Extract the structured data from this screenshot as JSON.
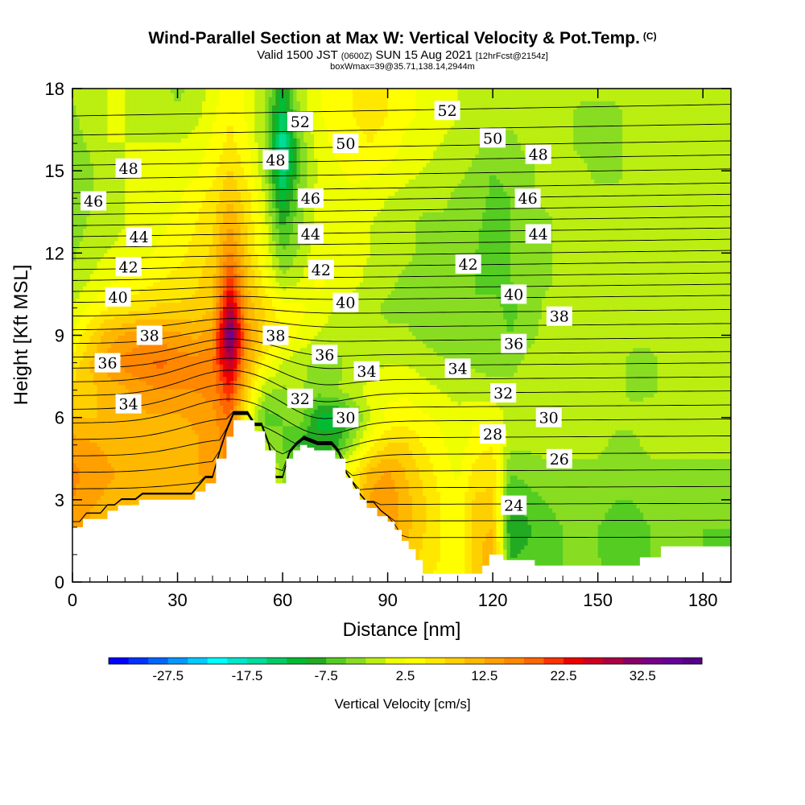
{
  "header": {
    "title": "Wind-Parallel Section at Max W: Vertical Velocity & Pot.Temp.",
    "copyright": "(C)",
    "valid_a": "Valid 1500 JST",
    "valid_utc": "(0600Z)",
    "valid_b": "SUN 15 Aug 2021",
    "forecast": "[12hrFcst@2154z]",
    "box_info": "boxWmax=39@35.71,138.14,2944m"
  },
  "chart_data": {
    "type": "heatmap",
    "xlabel": "Distance [nm]",
    "ylabel": "Height [Kft MSL]",
    "xlim": [
      0,
      188
    ],
    "ylim": [
      0,
      18
    ],
    "x_ticks": [
      "0",
      "30",
      "60",
      "90",
      "120",
      "150",
      "180"
    ],
    "y_ticks": [
      "0",
      "3",
      "6",
      "9",
      "12",
      "15",
      "18"
    ],
    "x_tick_values": [
      0,
      30,
      60,
      90,
      120,
      150,
      180
    ],
    "y_tick_values": [
      0,
      3,
      6,
      9,
      12,
      15,
      18
    ],
    "colorbar": {
      "title": "Vertical Velocity [cm/s]",
      "tick_labels": [
        "-27.5",
        "-17.5",
        "-7.5",
        "2.5",
        "12.5",
        "22.5",
        "32.5"
      ],
      "tick_values": [
        -27.5,
        -17.5,
        -7.5,
        2.5,
        12.5,
        22.5,
        32.5
      ],
      "range": [
        -35,
        40
      ],
      "colors": [
        "#0000ff",
        "#0033ff",
        "#0066ff",
        "#0099ff",
        "#00ccff",
        "#00ffff",
        "#00e6cc",
        "#00dd99",
        "#00cc66",
        "#00bb33",
        "#22aa22",
        "#55cc22",
        "#88dd22",
        "#bbee11",
        "#eeff00",
        "#ffff00",
        "#ffe800",
        "#ffd000",
        "#ffb800",
        "#ffa000",
        "#ff8800",
        "#ff6600",
        "#ff3300",
        "#ee0000",
        "#cc0022",
        "#aa0044",
        "#880066",
        "#770088",
        "#660099",
        "#550088"
      ]
    },
    "w_field": {
      "x": [
        0,
        5,
        10,
        15,
        20,
        25,
        30,
        35,
        40,
        45,
        50,
        55,
        60,
        65,
        70,
        75,
        80,
        85,
        90,
        95,
        100,
        105,
        110,
        115,
        120,
        125,
        130,
        135,
        140,
        145,
        150,
        155,
        160,
        165,
        170,
        175,
        180,
        185,
        188
      ],
      "z": [
        0,
        1,
        2,
        3,
        4,
        5,
        6,
        7,
        8,
        9,
        10,
        11,
        12,
        13,
        14,
        15,
        16,
        17,
        18
      ],
      "w": [
        [
          10,
          10,
          8,
          6,
          5,
          5,
          5,
          5,
          6,
          8,
          6,
          2,
          -2,
          -4,
          -4,
          0,
          4,
          10,
          12,
          10,
          6,
          4,
          2,
          8,
          12,
          -5,
          -6,
          -6,
          -5,
          -5,
          -4,
          -6,
          -6,
          -5,
          -4,
          -4,
          -5,
          -6,
          -6
        ],
        [
          12,
          11,
          9,
          7,
          6,
          6,
          6,
          6,
          7,
          9,
          7,
          3,
          -1,
          -3,
          -3,
          0,
          5,
          11,
          13,
          10,
          7,
          5,
          3,
          9,
          12,
          -8,
          -7,
          -6,
          -5,
          -5,
          -5,
          -6,
          -6,
          -5,
          -5,
          -4,
          -5,
          -6,
          -6
        ],
        [
          14,
          12,
          10,
          8,
          8,
          8,
          8,
          8,
          10,
          12,
          8,
          3,
          -1,
          -3,
          -3,
          0,
          5,
          12,
          14,
          11,
          8,
          5,
          3,
          9,
          10,
          -10,
          -8,
          -6,
          -5,
          -5,
          -5,
          -6,
          -6,
          -5,
          -5,
          -4,
          -5,
          -5,
          -5
        ],
        [
          15,
          13,
          12,
          11,
          10,
          10,
          10,
          10,
          12,
          14,
          9,
          2,
          -2,
          -3,
          -2,
          2,
          6,
          13,
          15,
          11,
          8,
          5,
          3,
          8,
          8,
          -8,
          -6,
          -5,
          -4,
          -4,
          -4,
          -5,
          -5,
          -4,
          -4,
          -4,
          -4,
          -4,
          -4
        ],
        [
          16,
          14,
          13,
          12,
          12,
          12,
          12,
          12,
          14,
          15,
          8,
          1,
          -3,
          -4,
          -3,
          0,
          5,
          11,
          13,
          10,
          7,
          4,
          2,
          6,
          7,
          -5,
          -4,
          -3,
          -3,
          -3,
          -3,
          -4,
          -4,
          -3,
          -3,
          -3,
          -3,
          -3,
          -3
        ],
        [
          14,
          13,
          12,
          11,
          11,
          11,
          11,
          12,
          14,
          16,
          6,
          -2,
          -5,
          -8,
          -10,
          -8,
          -2,
          4,
          8,
          8,
          5,
          3,
          1,
          4,
          5,
          -2,
          -2,
          -2,
          -2,
          -2,
          -2,
          -3,
          -3,
          -2,
          -2,
          -2,
          -2,
          -2,
          -2
        ],
        [
          10,
          10,
          10,
          11,
          12,
          12,
          12,
          13,
          14,
          18,
          2,
          -6,
          -5,
          -4,
          -10,
          -12,
          -6,
          0,
          3,
          4,
          3,
          2,
          1,
          2,
          2,
          -1,
          -1,
          -1,
          -1,
          -1,
          -1,
          -2,
          -2,
          -1,
          -1,
          -1,
          -1,
          -1,
          -1
        ],
        [
          8,
          9,
          11,
          12,
          14,
          15,
          15,
          15,
          16,
          22,
          8,
          -2,
          -3,
          -2,
          -4,
          -3,
          -1,
          1,
          2,
          2,
          1,
          0,
          -1,
          -1,
          -1,
          -2,
          -2,
          -2,
          -2,
          -2,
          -2,
          -2,
          -3,
          -3,
          -2,
          -2,
          -2,
          -2,
          -2
        ],
        [
          6,
          10,
          14,
          16,
          17,
          18,
          17,
          16,
          17,
          28,
          12,
          4,
          0,
          -2,
          -3,
          -3,
          -2,
          -1,
          0,
          0,
          -1,
          -2,
          -3,
          -3,
          -4,
          -3,
          -2,
          -2,
          -1,
          -2,
          -2,
          -2,
          -3,
          -3,
          -2,
          -2,
          -2,
          -2,
          -2
        ],
        [
          3,
          7,
          11,
          13,
          14,
          14,
          13,
          12,
          14,
          36,
          14,
          8,
          4,
          2,
          0,
          -2,
          -2,
          -2,
          -2,
          -2,
          -3,
          -4,
          -5,
          -4,
          -3,
          -5,
          -3,
          -2,
          -1,
          -1,
          -2,
          -2,
          -2,
          -2,
          -2,
          -2,
          -2,
          -2,
          -2
        ],
        [
          0,
          3,
          5,
          6,
          7,
          8,
          8,
          8,
          10,
          28,
          12,
          7,
          4,
          3,
          2,
          0,
          -1,
          -2,
          -3,
          -3,
          -4,
          -4,
          -5,
          -5,
          -4,
          -6,
          -4,
          -2,
          -1,
          -1,
          -2,
          -2,
          -2,
          -2,
          -2,
          -2,
          -2,
          -2,
          -2
        ],
        [
          -2,
          0,
          2,
          3,
          4,
          5,
          6,
          7,
          9,
          22,
          10,
          4,
          -2,
          0,
          3,
          2,
          1,
          -1,
          -2,
          -3,
          -3,
          -3,
          -4,
          -5,
          -6,
          -5,
          -4,
          -3,
          -2,
          -2,
          -2,
          -2,
          -2,
          -2,
          -2,
          -2,
          -2,
          -2,
          -2
        ],
        [
          -3,
          -1,
          0,
          1,
          2,
          3,
          4,
          6,
          8,
          16,
          8,
          2,
          -5,
          -2,
          2,
          2,
          1,
          0,
          -1,
          -2,
          -3,
          -3,
          -4,
          -5,
          -7,
          -5,
          -4,
          -3,
          -2,
          -2,
          -2,
          -2,
          -2,
          -2,
          -2,
          -2,
          -2,
          -2,
          -2
        ],
        [
          -4,
          -2,
          -1,
          0,
          1,
          2,
          3,
          5,
          7,
          13,
          7,
          1,
          -8,
          -3,
          1,
          2,
          1,
          0,
          -1,
          -2,
          -3,
          -3,
          -3,
          -4,
          -7,
          -5,
          -4,
          -3,
          -2,
          -2,
          -2,
          -2,
          -2,
          -2,
          -2,
          -2,
          -2,
          -2,
          -2
        ],
        [
          -5,
          -3,
          -1,
          0,
          1,
          2,
          2,
          4,
          6,
          10,
          6,
          0,
          -12,
          -3,
          1,
          2,
          2,
          1,
          0,
          -1,
          -2,
          -2,
          -3,
          -3,
          -6,
          -5,
          -3,
          -2,
          -2,
          -2,
          -2,
          -2,
          -2,
          -2,
          -2,
          -2,
          -2,
          -2,
          -2
        ],
        [
          -5,
          -3,
          -1,
          0,
          0,
          1,
          1,
          2,
          4,
          8,
          4,
          -2,
          -16,
          -5,
          0,
          2,
          3,
          3,
          2,
          1,
          0,
          -1,
          -2,
          -3,
          -5,
          -4,
          -3,
          -2,
          -2,
          -2,
          -3,
          -3,
          -2,
          -2,
          -2,
          -2,
          -2,
          -2,
          -2
        ],
        [
          -4,
          -2,
          0,
          0,
          0,
          0,
          0,
          1,
          3,
          6,
          3,
          -3,
          -18,
          -4,
          1,
          3,
          4,
          5,
          4,
          2,
          1,
          0,
          -1,
          -2,
          -3,
          -3,
          -2,
          -2,
          -2,
          -3,
          -3,
          -3,
          -2,
          -2,
          -2,
          -2,
          -2,
          -2,
          -2
        ],
        [
          -3,
          -1,
          0,
          0,
          -1,
          -1,
          -2,
          -1,
          2,
          5,
          2,
          -3,
          -14,
          -2,
          2,
          4,
          5,
          6,
          5,
          3,
          2,
          1,
          0,
          -1,
          -2,
          -2,
          -2,
          -2,
          -2,
          -3,
          -3,
          -3,
          -2,
          -2,
          -2,
          -2,
          -2,
          -2,
          -2
        ],
        [
          -2,
          -1,
          0,
          0,
          -1,
          -2,
          -3,
          -2,
          1,
          4,
          2,
          -2,
          -10,
          -1,
          2,
          4,
          5,
          6,
          5,
          3,
          2,
          1,
          0,
          -1,
          -1,
          -1,
          -1,
          -2,
          -2,
          -2,
          -2,
          -2,
          -2,
          -2,
          -2,
          -2,
          -2,
          -2,
          -2
        ]
      ]
    },
    "terrain": {
      "x": [
        0,
        3,
        3,
        10,
        10,
        13,
        13,
        19,
        19,
        35,
        35,
        38,
        38,
        41,
        41,
        44,
        44,
        46,
        46,
        52,
        52,
        55,
        55,
        58,
        58,
        61,
        61,
        63,
        63,
        65,
        65,
        67,
        67,
        69,
        69,
        75,
        75,
        78,
        78,
        80,
        80,
        82,
        82,
        84,
        84,
        87,
        87,
        90,
        90,
        92,
        92,
        94,
        94,
        96,
        96,
        98,
        98,
        100,
        100,
        106,
        106,
        113,
        113,
        117,
        117,
        119,
        119,
        123,
        123,
        132,
        132,
        145,
        145,
        162,
        162,
        168,
        168,
        179,
        179,
        188
      ],
      "z": [
        2.0,
        2.0,
        2.3,
        2.3,
        2.6,
        2.6,
        2.8,
        2.8,
        3.0,
        3.0,
        3.3,
        3.3,
        3.6,
        3.6,
        4.5,
        4.5,
        5.3,
        5.3,
        5.9,
        5.9,
        5.5,
        5.5,
        4.8,
        4.8,
        3.6,
        3.6,
        4.5,
        4.5,
        4.8,
        4.8,
        5.0,
        5.0,
        4.9,
        4.9,
        4.8,
        4.8,
        4.5,
        4.5,
        3.8,
        3.8,
        3.4,
        3.4,
        3.0,
        3.0,
        2.7,
        2.7,
        2.4,
        2.4,
        2.2,
        2.2,
        1.9,
        1.9,
        1.5,
        1.5,
        1.2,
        1.2,
        0.8,
        0.8,
        0.3,
        0.3,
        0.3,
        0.3,
        0.3,
        0.3,
        0.6,
        0.6,
        1.0,
        1.0,
        0.8,
        0.8,
        0.6,
        0.6,
        0.6,
        0.6,
        0.9,
        0.9,
        1.3,
        1.3,
        1.3,
        1.3
      ]
    },
    "theta_contours": {
      "levels": [
        22,
        23,
        24,
        25,
        26,
        27,
        28,
        29,
        30,
        31,
        32,
        33,
        34,
        35,
        36,
        37,
        38,
        39,
        40,
        41,
        42,
        43,
        44,
        45,
        46,
        47,
        48,
        49,
        50,
        51,
        52,
        53
      ],
      "x_nodes": [
        0,
        15,
        30,
        45,
        60,
        75,
        90,
        105,
        120,
        135,
        150,
        165,
        188
      ],
      "height_at_reference": [
        1.6,
        2.2,
        2.8,
        3.4,
        4.0,
        4.6,
        5.2,
        5.8,
        6.3,
        6.8,
        7.3,
        7.8,
        8.2,
        8.7,
        9.2,
        9.7,
        10.2,
        10.6,
        11.0,
        11.4,
        11.8,
        12.2,
        12.6,
        13.0,
        13.4,
        13.8,
        14.2,
        14.7,
        15.2,
        15.7,
        16.3,
        17.0
      ]
    },
    "theta_labels": [
      {
        "text": "52",
        "x": 65,
        "y": 16.8
      },
      {
        "text": "52",
        "x": 107,
        "y": 17.2
      },
      {
        "text": "50",
        "x": 78,
        "y": 16.0
      },
      {
        "text": "50",
        "x": 120,
        "y": 16.2
      },
      {
        "text": "48",
        "x": 16,
        "y": 15.1
      },
      {
        "text": "48",
        "x": 58,
        "y": 15.4
      },
      {
        "text": "48",
        "x": 133,
        "y": 15.6
      },
      {
        "text": "46",
        "x": 6,
        "y": 13.9
      },
      {
        "text": "46",
        "x": 68,
        "y": 14.0
      },
      {
        "text": "46",
        "x": 130,
        "y": 14.0
      },
      {
        "text": "44",
        "x": 19,
        "y": 12.6
      },
      {
        "text": "44",
        "x": 68,
        "y": 12.7
      },
      {
        "text": "44",
        "x": 133,
        "y": 12.7
      },
      {
        "text": "42",
        "x": 16,
        "y": 11.5
      },
      {
        "text": "42",
        "x": 71,
        "y": 11.4
      },
      {
        "text": "42",
        "x": 113,
        "y": 11.6
      },
      {
        "text": "40",
        "x": 13,
        "y": 10.4
      },
      {
        "text": "40",
        "x": 78,
        "y": 10.2
      },
      {
        "text": "40",
        "x": 126,
        "y": 10.5
      },
      {
        "text": "38",
        "x": 22,
        "y": 9.0
      },
      {
        "text": "38",
        "x": 58,
        "y": 9.0
      },
      {
        "text": "38",
        "x": 139,
        "y": 9.7
      },
      {
        "text": "36",
        "x": 10,
        "y": 8.0
      },
      {
        "text": "36",
        "x": 72,
        "y": 8.3
      },
      {
        "text": "36",
        "x": 126,
        "y": 8.7
      },
      {
        "text": "34",
        "x": 16,
        "y": 6.5
      },
      {
        "text": "34",
        "x": 84,
        "y": 7.7
      },
      {
        "text": "34",
        "x": 110,
        "y": 7.8
      },
      {
        "text": "32",
        "x": 65,
        "y": 6.7
      },
      {
        "text": "32",
        "x": 123,
        "y": 6.9
      },
      {
        "text": "30",
        "x": 78,
        "y": 6.0
      },
      {
        "text": "30",
        "x": 136,
        "y": 6.0
      },
      {
        "text": "28",
        "x": 120,
        "y": 5.4
      },
      {
        "text": "26",
        "x": 139,
        "y": 4.5
      },
      {
        "text": "24",
        "x": 126,
        "y": 2.8
      }
    ]
  }
}
